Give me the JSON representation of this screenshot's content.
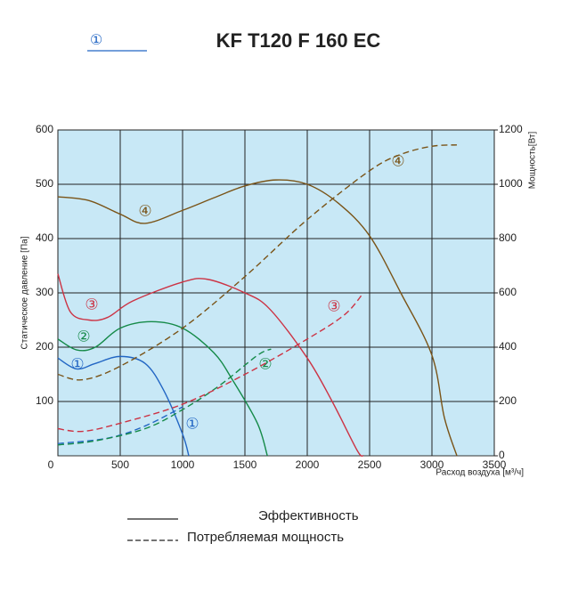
{
  "chart_data": {
    "type": "line",
    "title": "KF T120 F 160 EC",
    "model_marker": "①",
    "y_label": "Статическое давление [Па]",
    "y2_label": "Мощность[Вт]",
    "x_label": "Расход воздуха [м³/ч]",
    "xlim": [
      0,
      3500
    ],
    "xticks": [
      0,
      500,
      1000,
      1500,
      2000,
      2500,
      3000,
      3500
    ],
    "ylim": [
      0,
      600
    ],
    "yticks": [
      100,
      200,
      300,
      400,
      500,
      600
    ],
    "y2lim": [
      0,
      1200
    ],
    "y2ticks": [
      0,
      200,
      400,
      600,
      800,
      1000,
      1200
    ],
    "grid": true,
    "legend_items": [
      {
        "label": "Эффективность",
        "style": "solid"
      },
      {
        "label": "Потребляемая мощность",
        "style": "dashed"
      }
    ],
    "series": [
      {
        "name": "①",
        "color": "#2266c4",
        "style": "solid",
        "x": [
          0,
          150,
          300,
          500,
          700,
          850,
          1000,
          1050
        ],
        "values": [
          180,
          160,
          170,
          183,
          170,
          120,
          40,
          0
        ]
      },
      {
        "name": "②",
        "color": "#158a48",
        "style": "solid",
        "x": [
          0,
          150,
          300,
          500,
          750,
          1000,
          1250,
          1400,
          1600,
          1680
        ],
        "values": [
          215,
          195,
          200,
          235,
          247,
          235,
          190,
          140,
          60,
          0
        ]
      },
      {
        "name": "③",
        "color": "#cc3344",
        "style": "solid",
        "x": [
          0,
          100,
          250,
          400,
          600,
          1000,
          1200,
          1500,
          1700,
          2000,
          2200,
          2400,
          2450
        ],
        "values": [
          335,
          265,
          250,
          255,
          285,
          320,
          325,
          300,
          270,
          180,
          100,
          10,
          0
        ]
      },
      {
        "name": "④",
        "color": "#7a5418",
        "style": "solid",
        "x": [
          0,
          250,
          500,
          700,
          1000,
          1250,
          1500,
          1750,
          2000,
          2250,
          2500,
          2750,
          3000,
          3100,
          3200
        ],
        "values": [
          477,
          470,
          445,
          428,
          452,
          475,
          497,
          508,
          500,
          465,
          405,
          300,
          185,
          70,
          0
        ]
      },
      {
        "name": "①",
        "color": "#2266c4",
        "style": "dashed",
        "axis": "y2",
        "x": [
          0,
          400,
          700,
          1000
        ],
        "values": [
          45,
          65,
          110,
          180
        ]
      },
      {
        "name": "②",
        "color": "#158a48",
        "style": "dashed",
        "axis": "y2",
        "x": [
          0,
          300,
          700,
          1000,
          1300,
          1600,
          1710
        ],
        "values": [
          40,
          55,
          100,
          170,
          260,
          370,
          393
        ]
      },
      {
        "name": "③",
        "color": "#cc3344",
        "style": "dashed",
        "axis": "y2",
        "x": [
          0,
          200,
          500,
          1000,
          1500,
          2000,
          2300,
          2450
        ],
        "values": [
          100,
          90,
          120,
          190,
          300,
          430,
          520,
          600
        ]
      },
      {
        "name": "④",
        "color": "#7a5418",
        "style": "dashed",
        "axis": "y2",
        "x": [
          0,
          200,
          500,
          1000,
          1500,
          2000,
          2500,
          2750,
          3000,
          3200
        ],
        "values": [
          300,
          280,
          330,
          470,
          660,
          870,
          1050,
          1110,
          1140,
          1145
        ]
      }
    ]
  }
}
